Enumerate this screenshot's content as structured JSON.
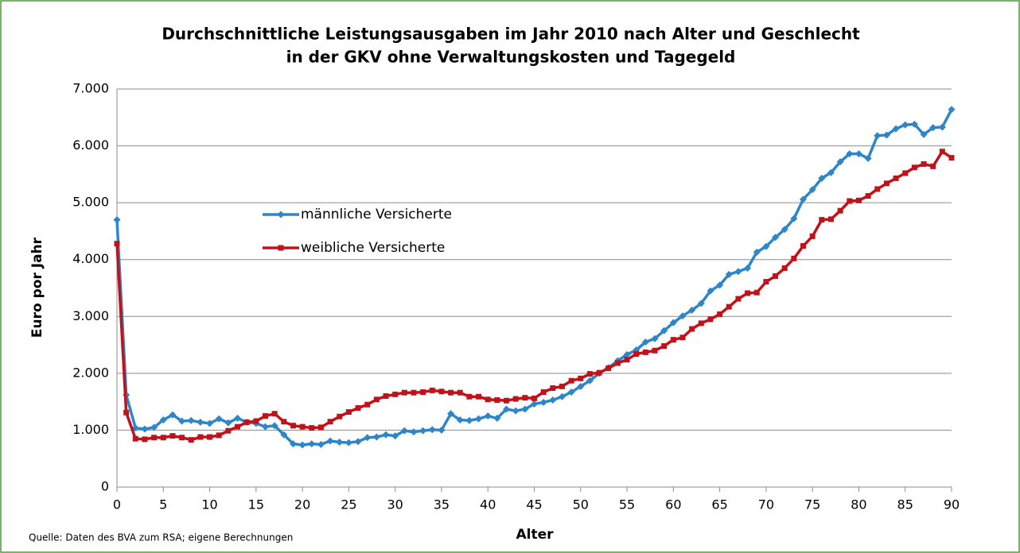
{
  "chart_data": {
    "type": "line",
    "title": [
      "Durchschnittliche Leistungsausgaben im Jahr 2010 nach Alter und Geschlecht",
      "in der GKV ohne Verwaltungskosten und Tagegeld"
    ],
    "x_label": "Alter",
    "y_label": "Euro por Jahr",
    "source": "Quelle: Daten des BVA zum RSA; eigene Berechnungen",
    "x": [
      0,
      1,
      2,
      3,
      4,
      5,
      6,
      7,
      8,
      9,
      10,
      11,
      12,
      13,
      14,
      15,
      16,
      17,
      18,
      19,
      20,
      21,
      22,
      23,
      24,
      25,
      26,
      27,
      28,
      29,
      30,
      31,
      32,
      33,
      34,
      35,
      36,
      37,
      38,
      39,
      40,
      41,
      42,
      43,
      44,
      45,
      46,
      47,
      48,
      49,
      50,
      51,
      52,
      53,
      54,
      55,
      56,
      57,
      58,
      59,
      60,
      61,
      62,
      63,
      64,
      65,
      66,
      67,
      68,
      69,
      70,
      71,
      72,
      73,
      74,
      75,
      76,
      77,
      78,
      79,
      80,
      81,
      82,
      83,
      84,
      85,
      86,
      87,
      88,
      89,
      90
    ],
    "series": [
      {
        "name": "männliche Versicherte",
        "color": "#2e86c8",
        "marker": "diamond",
        "values": [
          4700,
          1620,
          1040,
          1020,
          1050,
          1180,
          1270,
          1160,
          1170,
          1140,
          1120,
          1200,
          1130,
          1210,
          1140,
          1120,
          1060,
          1080,
          920,
          760,
          740,
          760,
          750,
          810,
          790,
          780,
          800,
          870,
          880,
          920,
          900,
          990,
          970,
          990,
          1010,
          1000,
          1290,
          1180,
          1170,
          1200,
          1250,
          1210,
          1370,
          1340,
          1370,
          1460,
          1490,
          1530,
          1590,
          1670,
          1770,
          1870,
          2000,
          2100,
          2220,
          2330,
          2410,
          2550,
          2610,
          2750,
          2890,
          3010,
          3110,
          3230,
          3450,
          3550,
          3740,
          3790,
          3850,
          4130,
          4230,
          4390,
          4530,
          4720,
          5060,
          5230,
          5430,
          5530,
          5720,
          5860,
          5860,
          5780,
          6180,
          6190,
          6300,
          6370,
          6380,
          6200,
          6320,
          6330,
          6640
        ]
      },
      {
        "name": "weibliche Versicherte",
        "color": "#c0121a",
        "marker": "square",
        "values": [
          4280,
          1310,
          850,
          840,
          870,
          870,
          900,
          870,
          830,
          880,
          880,
          910,
          990,
          1060,
          1140,
          1160,
          1250,
          1290,
          1150,
          1080,
          1060,
          1040,
          1050,
          1150,
          1240,
          1320,
          1390,
          1450,
          1540,
          1600,
          1630,
          1660,
          1660,
          1670,
          1700,
          1680,
          1660,
          1660,
          1590,
          1590,
          1540,
          1530,
          1520,
          1550,
          1570,
          1560,
          1670,
          1740,
          1770,
          1870,
          1910,
          1990,
          2010,
          2090,
          2180,
          2240,
          2340,
          2370,
          2400,
          2480,
          2590,
          2630,
          2780,
          2880,
          2950,
          3040,
          3170,
          3310,
          3410,
          3420,
          3610,
          3710,
          3850,
          4020,
          4240,
          4410,
          4700,
          4710,
          4860,
          5030,
          5040,
          5120,
          5240,
          5340,
          5430,
          5520,
          5620,
          5680,
          5640,
          5900,
          5790
        ]
      }
    ],
    "xlim": [
      0,
      90
    ],
    "xticks": [
      0,
      5,
      10,
      15,
      20,
      25,
      30,
      35,
      40,
      45,
      50,
      55,
      60,
      65,
      70,
      75,
      80,
      85,
      90
    ],
    "ylim": [
      0,
      7000
    ],
    "yticks": [
      0,
      {
        "value": 1000,
        "label": "1.000"
      },
      {
        "value": 2000,
        "label": "2.000"
      },
      {
        "value": 3000,
        "label": "3.000"
      },
      {
        "value": 4000,
        "label": "4.000"
      },
      {
        "value": 5000,
        "label": "5.000"
      },
      {
        "value": 6000,
        "label": "6.000"
      },
      {
        "value": 7000,
        "label": "7.000"
      }
    ],
    "grid": true,
    "legend": "left"
  }
}
